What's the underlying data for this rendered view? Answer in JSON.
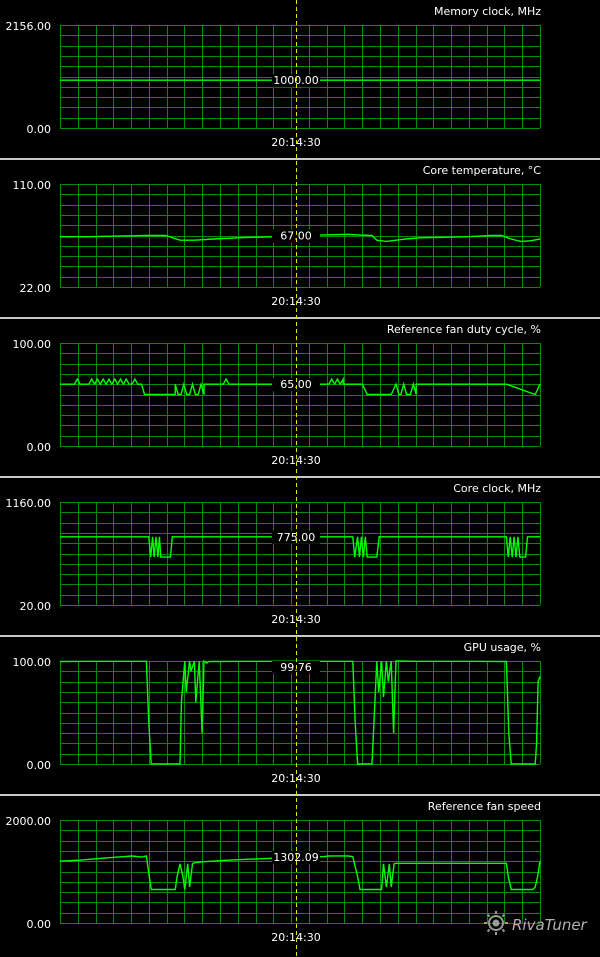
{
  "cursor_time": "20:14:30",
  "colors": {
    "background": "#000000",
    "grid": "#0a8a0a",
    "line": "#00ff00",
    "label": "#ffffff",
    "cursor": "#e6e600",
    "separator": "#c8c8c8"
  },
  "logo": {
    "text": "RivaTuner"
  },
  "chart_data": [
    {
      "type": "line",
      "title": "Memory clock, MHz",
      "ylim": [
        0,
        2156
      ],
      "ymax_label": "2156.00",
      "ymin_label": "0.00",
      "cursor_value": "1000.00",
      "x_label": "20:14:30",
      "x": [
        0,
        100
      ],
      "y": [
        1000,
        1000
      ]
    },
    {
      "type": "line",
      "title": "Core temperature, °C",
      "ylim": [
        22,
        110
      ],
      "ymax_label": "110.00",
      "ymin_label": "22.00",
      "cursor_value": "67.00",
      "x_label": "20:14:30",
      "x": [
        0,
        6,
        12,
        18,
        22,
        25,
        28,
        32,
        37,
        40,
        45,
        50,
        55,
        60,
        62,
        65,
        66,
        68,
        70,
        72,
        75,
        80,
        85,
        90,
        92,
        94,
        96,
        98,
        100
      ],
      "y": [
        65,
        65,
        65.5,
        66,
        66,
        62,
        62,
        63,
        64,
        64.5,
        65,
        66,
        66.5,
        67,
        66.5,
        66,
        62,
        61,
        62,
        63,
        64,
        64.5,
        65,
        66,
        66,
        63,
        61,
        61.5,
        63
      ]
    },
    {
      "type": "line",
      "title": "Reference fan duty cycle, %",
      "ylim": [
        0,
        100
      ],
      "ymax_label": "100.00",
      "ymin_label": "0.00",
      "cursor_value": "65.00",
      "x_label": "20:14:30",
      "x": [
        0,
        3,
        3.6,
        4.2,
        6,
        6.6,
        7.2,
        7.8,
        8.4,
        9,
        9.6,
        10.2,
        10.8,
        11.4,
        12,
        12.6,
        13.2,
        13.8,
        14.4,
        15,
        15.6,
        16.2,
        17,
        17.6,
        18.2,
        18.2,
        24,
        24,
        24.6,
        25.2,
        25.8,
        26.4,
        27,
        27.6,
        28.2,
        28.8,
        29.4,
        30,
        30,
        34,
        34.6,
        35.2,
        40,
        52,
        52.6,
        53.2,
        56,
        56.6,
        57.2,
        57.8,
        58.4,
        59,
        59,
        61,
        61,
        62,
        63,
        64,
        65,
        65,
        69,
        70,
        70.6,
        71,
        71.6,
        72.2,
        73,
        73.6,
        74.2,
        74.2,
        93,
        93,
        99,
        99,
        100
      ],
      "y": [
        60,
        60,
        65,
        60,
        60,
        65,
        60,
        65,
        60,
        65,
        60,
        65,
        60,
        65,
        60,
        65,
        60,
        65,
        60,
        60,
        65,
        60,
        60,
        50,
        50,
        50,
        50,
        60,
        50,
        50,
        60,
        50,
        50,
        60,
        50,
        50,
        60,
        50,
        60,
        60,
        65,
        60,
        60,
        60,
        65,
        60,
        60,
        65,
        60,
        65,
        60,
        65,
        60,
        60,
        60,
        60,
        60,
        50,
        50,
        50,
        50,
        60,
        50,
        50,
        60,
        50,
        50,
        60,
        50,
        60,
        60,
        60,
        50,
        50,
        60
      ]
    },
    {
      "type": "line",
      "title": "Core clock, MHz",
      "ylim": [
        20,
        1160
      ],
      "ymax_label": "1160.00",
      "ymin_label": "20.00",
      "cursor_value": "775.00",
      "x_label": "20:14:30",
      "x": [
        0,
        18.5,
        18.9,
        19.3,
        19.6,
        20,
        20.4,
        20.7,
        21,
        23,
        23.4,
        61,
        61.4,
        62,
        62.4,
        62.8,
        63.2,
        63.6,
        64,
        66,
        66.5,
        93,
        93.4,
        93.8,
        94.2,
        94.6,
        95,
        95.4,
        95.8,
        97,
        97.4,
        100
      ],
      "y": [
        775,
        775,
        550,
        775,
        550,
        775,
        550,
        775,
        550,
        550,
        775,
        775,
        550,
        775,
        550,
        775,
        550,
        775,
        550,
        550,
        775,
        775,
        550,
        775,
        550,
        775,
        550,
        775,
        550,
        550,
        775,
        775
      ]
    },
    {
      "type": "line",
      "title": "GPU usage, %",
      "ylim": [
        0,
        100
      ],
      "ymax_label": "100.00",
      "ymin_label": "0.00",
      "cursor_value": "99.76",
      "x_label": "20:14:30",
      "x": [
        0,
        6,
        18,
        18.5,
        19,
        25,
        25.3,
        26,
        26.3,
        27,
        27.3,
        28,
        28.3,
        29,
        29.6,
        30,
        30.6,
        31,
        40,
        50,
        60,
        61,
        61.5,
        62,
        62.5,
        63,
        63.5,
        64,
        64.5,
        65,
        66,
        66.4,
        67,
        67.4,
        68,
        68.4,
        69,
        69.5,
        70,
        74,
        85,
        93,
        93.5,
        94,
        99,
        99.3,
        99.6,
        100
      ],
      "y": [
        99.5,
        99.7,
        99.7,
        40,
        0,
        0,
        60,
        100,
        70,
        100,
        90,
        100,
        60,
        100,
        30,
        100,
        98,
        99.5,
        99.7,
        99.7,
        99.7,
        99.7,
        40,
        0,
        0,
        0,
        0,
        0,
        0,
        0,
        100,
        70,
        100,
        65,
        100,
        80,
        100,
        30,
        100,
        99.7,
        99.7,
        99.5,
        30,
        0,
        0,
        20,
        80,
        85
      ]
    },
    {
      "type": "line",
      "title": "Reference fan speed",
      "ylim": [
        0,
        2000
      ],
      "ymax_label": "2000.00",
      "ymin_label": "0.00",
      "cursor_value": "1302.09",
      "x_label": "20:14:30",
      "x": [
        0,
        4,
        8,
        12,
        15,
        17,
        18,
        18.6,
        19,
        24,
        24.4,
        25,
        25.6,
        26,
        26.6,
        27,
        27.6,
        28,
        30,
        35,
        40,
        45,
        50,
        55,
        56,
        58,
        60,
        61,
        62,
        62.5,
        67,
        67.4,
        68,
        68.6,
        69,
        69.6,
        70,
        72,
        75,
        80,
        85,
        90,
        93,
        93.4,
        94,
        98.5,
        99,
        99.5,
        100
      ],
      "y": [
        1200,
        1220,
        1250,
        1280,
        1300,
        1280,
        1300,
        900,
        650,
        650,
        900,
        1150,
        900,
        650,
        1150,
        700,
        1150,
        1170,
        1190,
        1220,
        1240,
        1260,
        1280,
        1290,
        1300,
        1302,
        1300,
        1290,
        900,
        650,
        650,
        1150,
        700,
        1150,
        700,
        1150,
        1160,
        1160,
        1160,
        1160,
        1160,
        1160,
        1160,
        900,
        650,
        650,
        700,
        900,
        1200
      ]
    }
  ]
}
